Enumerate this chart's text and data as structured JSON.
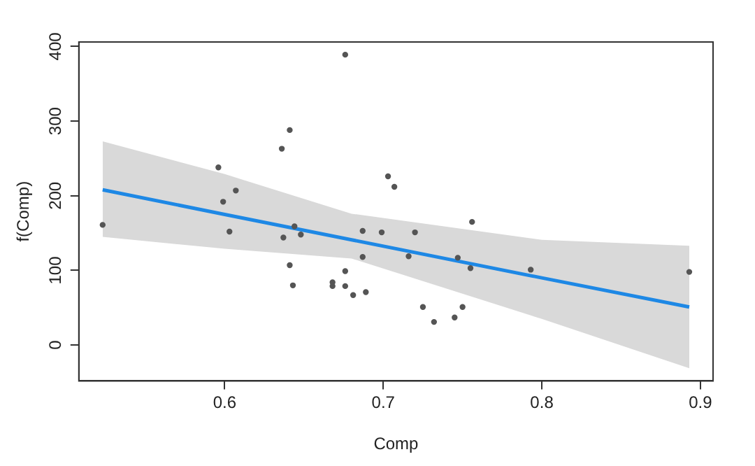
{
  "chart_data": {
    "type": "scatter",
    "xlabel": "Comp",
    "ylabel": "f(Comp)",
    "xlim": [
      0.508,
      0.908
    ],
    "ylim": [
      -48,
      406
    ],
    "xticks": [
      0.6,
      0.7,
      0.8,
      0.9
    ],
    "yticks": [
      0,
      100,
      200,
      300,
      400
    ],
    "grid": false,
    "legend": false,
    "marker": "circle",
    "series": [
      {
        "type": "scatter",
        "color": "#555555",
        "x": [
          0.523,
          0.676,
          0.641,
          0.636,
          0.596,
          0.607,
          0.599,
          0.603,
          0.637,
          0.644,
          0.648,
          0.641,
          0.643,
          0.668,
          0.668,
          0.676,
          0.676,
          0.681,
          0.689,
          0.687,
          0.687,
          0.699,
          0.703,
          0.707,
          0.716,
          0.72,
          0.756,
          0.747,
          0.755,
          0.725,
          0.732,
          0.745,
          0.75,
          0.793,
          0.893
        ],
        "values": [
          161,
          389,
          288,
          263,
          238,
          207,
          192,
          152,
          144,
          159,
          148,
          107,
          80,
          84,
          79,
          99,
          79,
          67,
          71,
          153,
          118,
          151,
          226,
          212,
          119,
          151,
          165,
          117,
          103,
          51,
          31,
          37,
          51,
          101,
          98
        ]
      },
      {
        "type": "line",
        "color": "#1e88e5",
        "marker": "none",
        "x": [
          0.523,
          0.6,
          0.68,
          0.8,
          0.893
        ],
        "values": [
          208,
          175,
          141,
          90,
          51
        ],
        "lower": [
          145,
          129,
          116,
          35,
          -31
        ],
        "upper": [
          273,
          229,
          176,
          141,
          133
        ]
      }
    ]
  }
}
